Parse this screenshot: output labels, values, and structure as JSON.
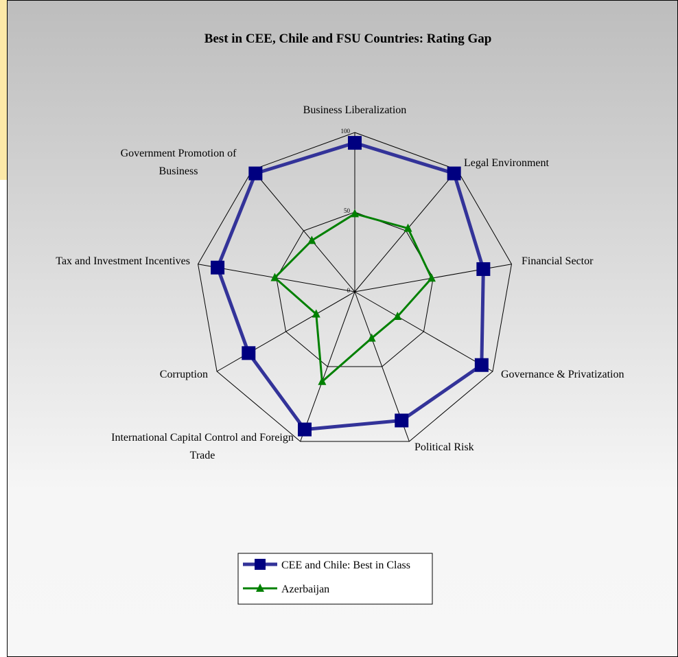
{
  "chart_data": {
    "type": "radar",
    "title": "Best in CEE, Chile and FSU Countries: Rating Gap",
    "categories": [
      "Business Liberalization",
      "Legal Environment",
      "Financial Sector",
      "Governance & Privatization",
      "Political Risk",
      "International Capital Control and Foreign Trade",
      "Corruption",
      "Tax and Investment Incentives",
      "Government Promotion of Business"
    ],
    "series": [
      {
        "name": "CEE and Chile: Best in Class",
        "color": "#333399",
        "values": [
          93.5,
          97,
          82,
          92,
          86,
          92,
          77,
          87.5,
          97
        ]
      },
      {
        "name": "Azerbaijan",
        "color": "#008000",
        "values": [
          49,
          52,
          49,
          31,
          31,
          60,
          28,
          51,
          42
        ]
      }
    ],
    "ylim": [
      0,
      100
    ],
    "yticks": [
      0,
      50,
      100
    ],
    "grid": true,
    "legend": "bottom"
  }
}
